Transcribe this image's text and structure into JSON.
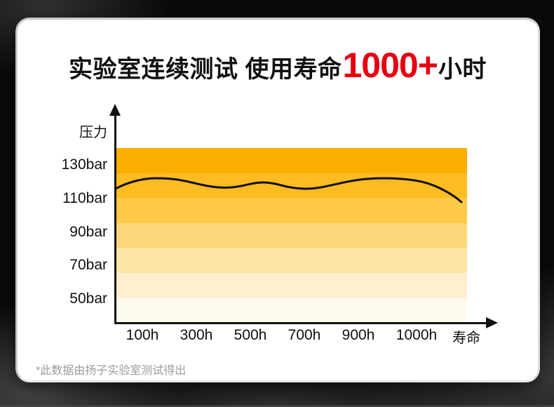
{
  "title": {
    "prefix": "实验室连续测试 使用寿命",
    "highlight": "1000+",
    "suffix": "小时",
    "highlight_color": "#e60012"
  },
  "chart_data": {
    "type": "line",
    "title": "实验室连续测试 使用寿命1000+小时",
    "ylabel": "压力",
    "xlabel": "寿命",
    "x_ticks": [
      "100h",
      "300h",
      "500h",
      "700h",
      "900h",
      "1000h"
    ],
    "x_axis_end_label": "寿命",
    "y_ticks": [
      "130bar",
      "110bar",
      "90bar",
      "70bar",
      "50bar"
    ],
    "y_unit": "bar",
    "ylim": [
      50,
      140
    ],
    "grid": "off",
    "legend": "none",
    "line_color": "#111111",
    "band_colors": [
      "#fcae03",
      "#fdbd22",
      "#fdc947",
      "#fed77a",
      "#fee5a8",
      "#fef0ce",
      "#fefaec"
    ],
    "series": [
      {
        "name": "压力",
        "x_hours": [
          0,
          100,
          200,
          300,
          400,
          500,
          600,
          700,
          800,
          900,
          1000
        ],
        "values_bar": [
          116,
          121,
          122,
          119,
          117,
          119,
          117,
          116,
          119,
          122,
          108
        ]
      }
    ]
  },
  "footnote": "*此数据由扬子实验室测试得出"
}
